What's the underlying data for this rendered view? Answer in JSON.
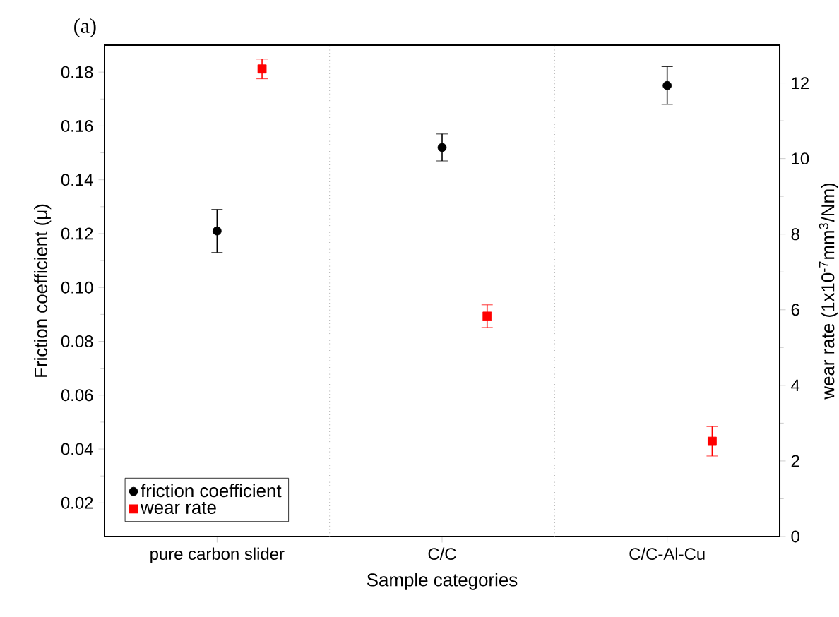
{
  "chart_data": {
    "type": "scatter",
    "title": "(a)",
    "categories": [
      "pure carbon slider",
      "C/C",
      "C/C-Al-Cu"
    ],
    "xlabel": "Sample categories",
    "ylabel": "Friction coefficient (μ)",
    "y2label": "wear rate (1x10$^{-7}$mm$^{3}$/Nm)",
    "ylim": [
      0.0075,
      0.19
    ],
    "yticks": [
      0.02,
      0.04,
      0.06,
      0.08,
      {
        "value": 0.1,
        "label": "0.10"
      },
      0.12,
      0.14,
      0.16,
      0.18
    ],
    "y2lim": [
      0,
      13
    ],
    "y2ticks": [
      0,
      2,
      4,
      6,
      8,
      10,
      12
    ],
    "series": [
      {
        "name": "friction coefficient",
        "color": "#000000",
        "marker": "circle",
        "values": [
          0.121,
          0.152,
          0.175
        ],
        "errors": [
          0.008,
          0.005,
          0.007
        ]
      },
      {
        "name": "wear rate",
        "color": "#ff0000",
        "marker": "square",
        "axis": "y2",
        "values": [
          12.37,
          5.83,
          2.52
        ],
        "errors": [
          0.26,
          0.3,
          0.39
        ]
      }
    ],
    "legend": "bottom left",
    "grid": false
  }
}
